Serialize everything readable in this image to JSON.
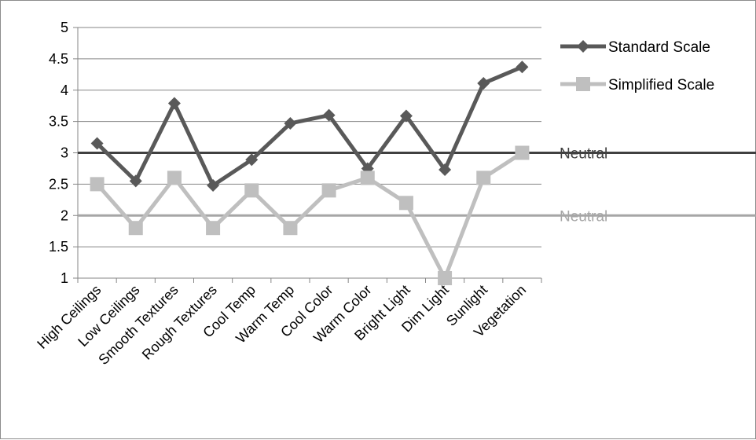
{
  "chart_data": {
    "type": "line",
    "categories": [
      "High Ceilings",
      "Low Ceilings",
      "Smooth Textures",
      "Rough Textures",
      "Cool Temp",
      "Warm Temp",
      "Cool Color",
      "Warm Color",
      "Bright Light",
      "Dim Light",
      "Sunlight",
      "Vegetation"
    ],
    "series": [
      {
        "name": "Standard Scale",
        "values": [
          3.15,
          2.55,
          3.79,
          2.48,
          2.89,
          3.47,
          3.6,
          2.75,
          3.59,
          2.73,
          4.11,
          4.37
        ],
        "color": "#595959",
        "marker": "diamond"
      },
      {
        "name": "Simplified Scale",
        "values": [
          2.5,
          1.8,
          2.6,
          1.8,
          2.4,
          1.8,
          2.4,
          2.6,
          2.2,
          1.0,
          2.6,
          3.0
        ],
        "color": "#bfbfbf",
        "marker": "square"
      }
    ],
    "reference_lines": [
      {
        "label": "Neutral",
        "value": 3,
        "color": "#404040"
      },
      {
        "label": "Neutral",
        "value": 2,
        "color": "#a6a6a6"
      }
    ],
    "yticks": [
      "5",
      "4.5",
      "4",
      "3.5",
      "3",
      "2.5",
      "2",
      "1.5",
      "1"
    ],
    "ylim": [
      1,
      5
    ],
    "grid": true,
    "legend_position": "right",
    "title": "",
    "xlabel": "",
    "ylabel": ""
  }
}
